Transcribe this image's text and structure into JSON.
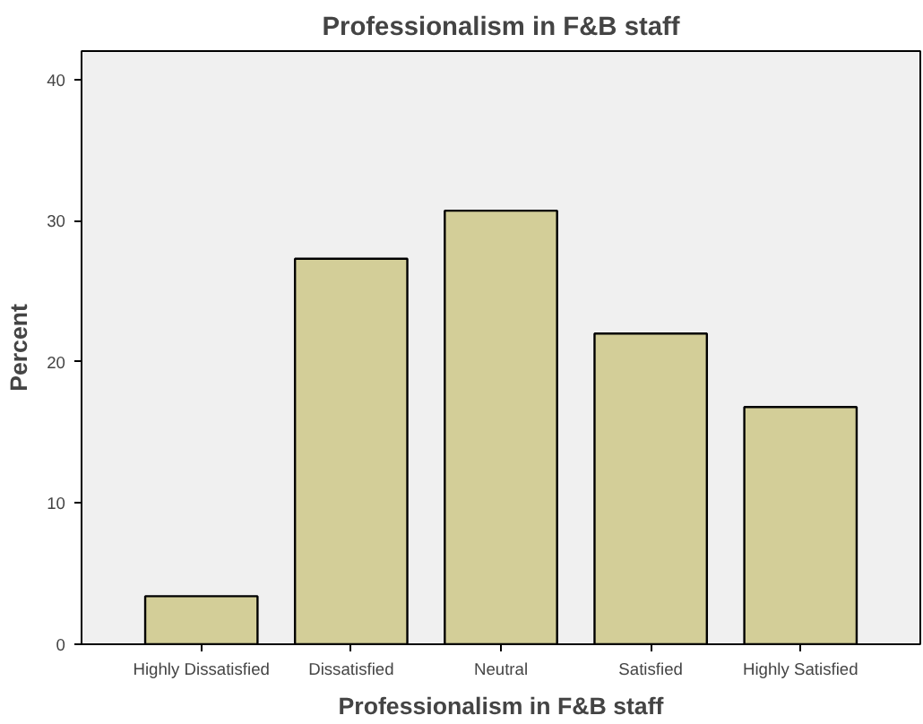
{
  "chart_data": {
    "type": "bar",
    "title": "Professionalism in F&B staff",
    "xlabel": "Professionalism in F&B staff",
    "ylabel": "Percent",
    "categories": [
      "Highly Dissatisfied",
      "Dissatisfied",
      "Neutral",
      "Satisfied",
      "Highly Satisfied"
    ],
    "values": [
      3.4,
      27.3,
      30.7,
      22.0,
      16.8
    ],
    "color": "#d3ce98",
    "ylim": [
      0,
      42
    ],
    "yticks": [
      0,
      10,
      20,
      30,
      40
    ],
    "grid": false
  }
}
